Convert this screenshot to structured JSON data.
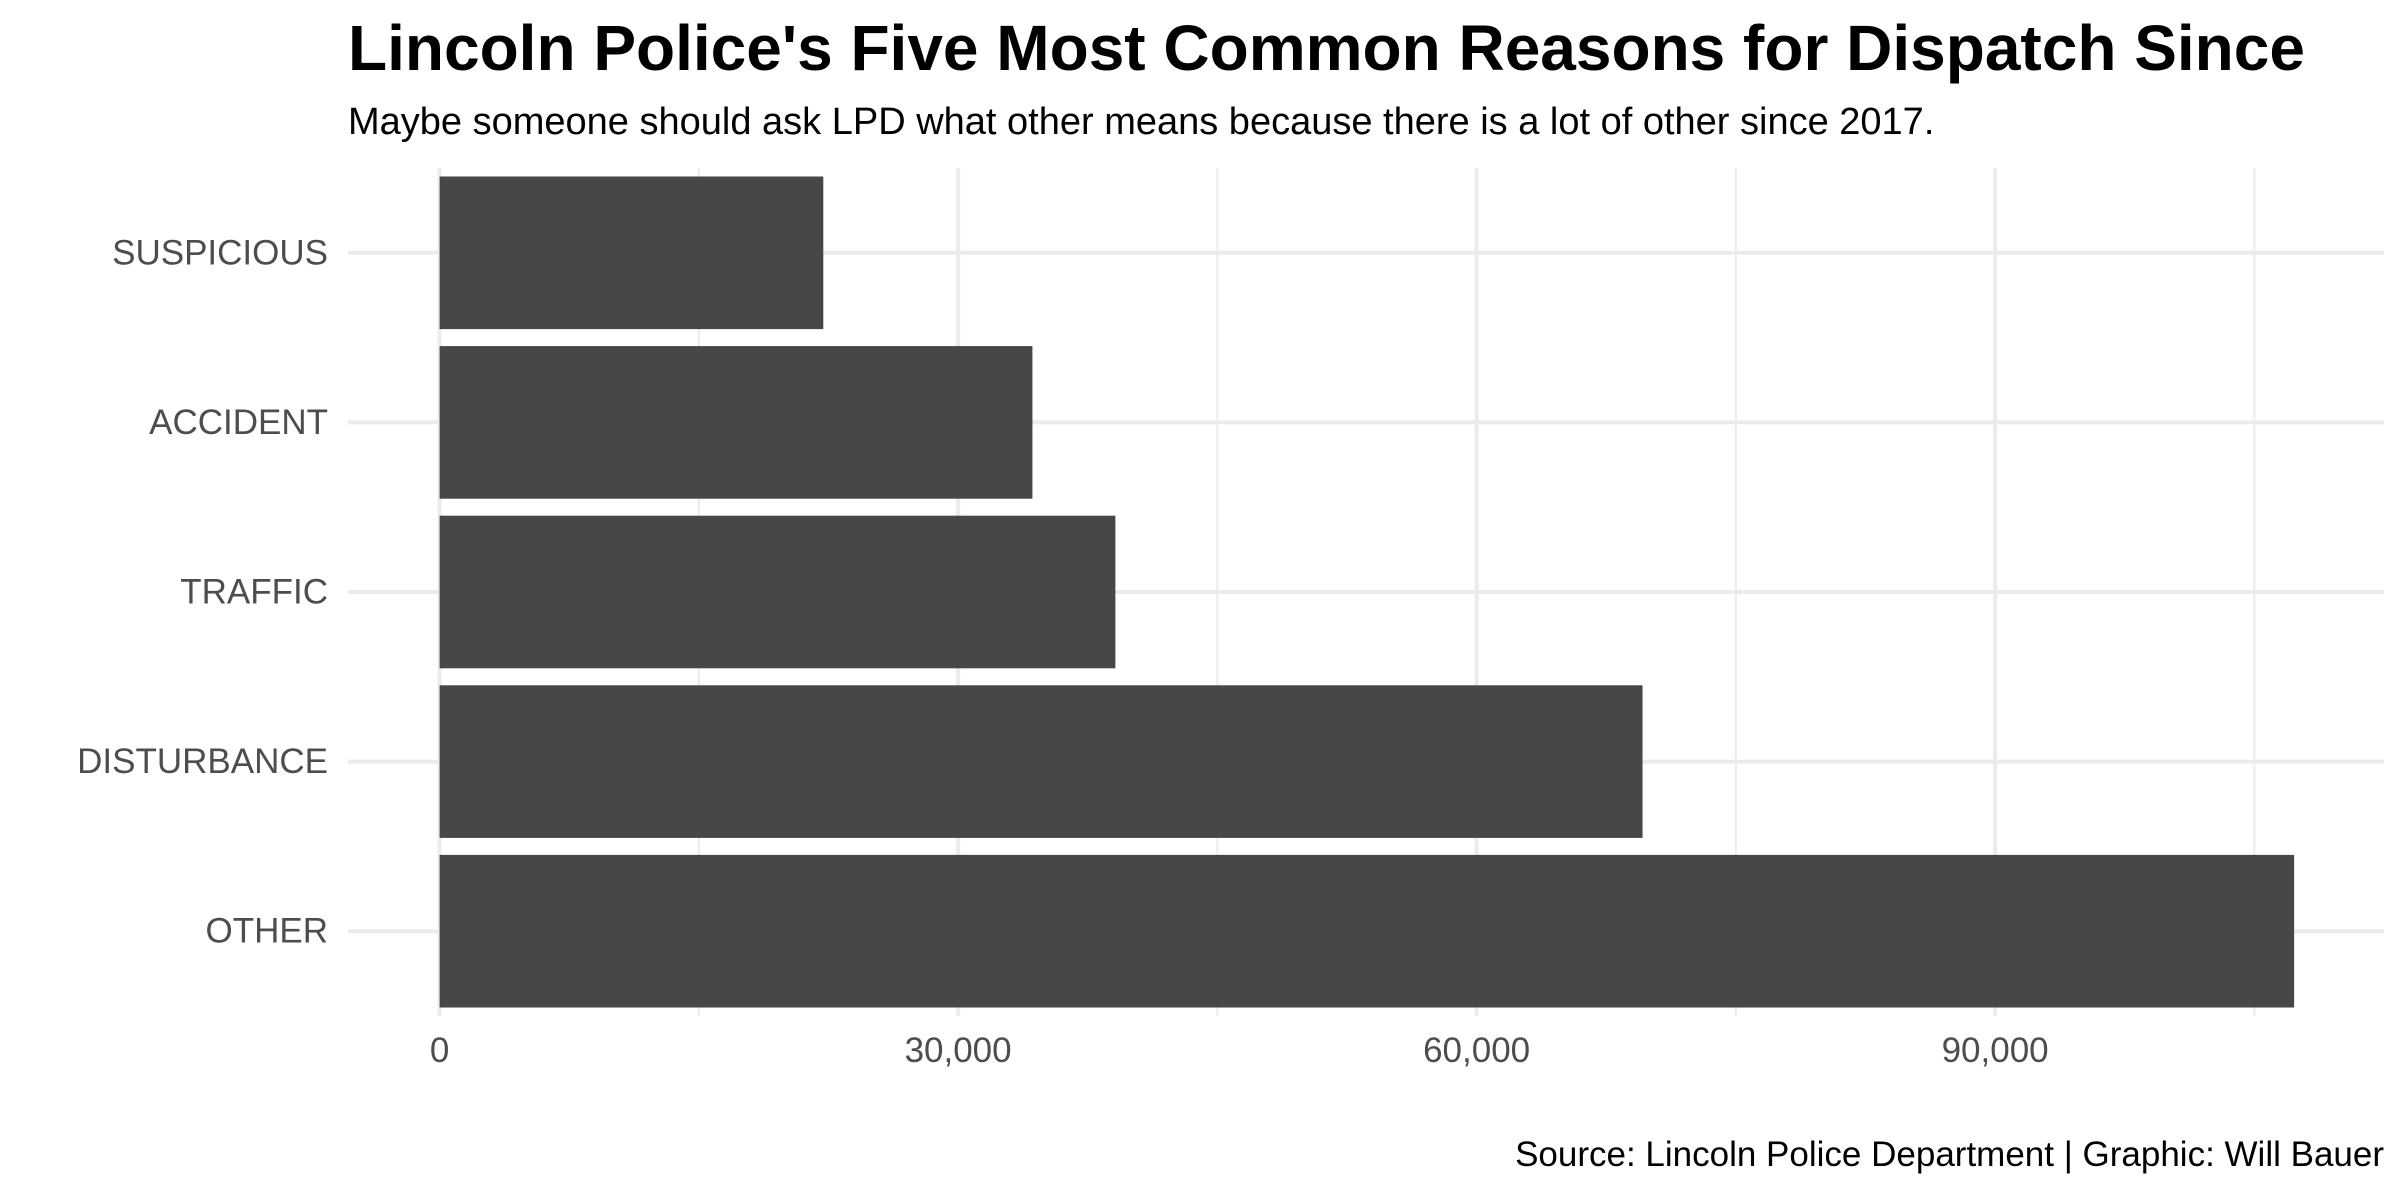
{
  "chart_data": {
    "type": "bar",
    "orientation": "horizontal",
    "title": "Lincoln Police's Five Most Common Reasons for Dispatch Since",
    "subtitle": "Maybe someone should ask LPD what other means because there is a lot of other since 2017.",
    "caption": "Source: Lincoln Police Department | Graphic: Will Bauer",
    "xlabel": "",
    "ylabel": "",
    "categories": [
      "SUSPICIOUS",
      "ACCIDENT",
      "TRAFFIC",
      "DISTURBANCE",
      "OTHER"
    ],
    "values": [
      22200,
      34300,
      39100,
      69600,
      107300
    ],
    "x_ticks": [
      0,
      30000,
      60000,
      90000
    ],
    "x_tick_labels": [
      "0",
      "30,000",
      "60,000",
      "90,000"
    ],
    "xlim": [
      -5300,
      112500
    ],
    "grid": true,
    "legend": "none",
    "colors": {
      "bar": "#474747",
      "grid": "#ebebeb",
      "tick_text": "#4d4d4d",
      "background": "#ffffff"
    }
  }
}
